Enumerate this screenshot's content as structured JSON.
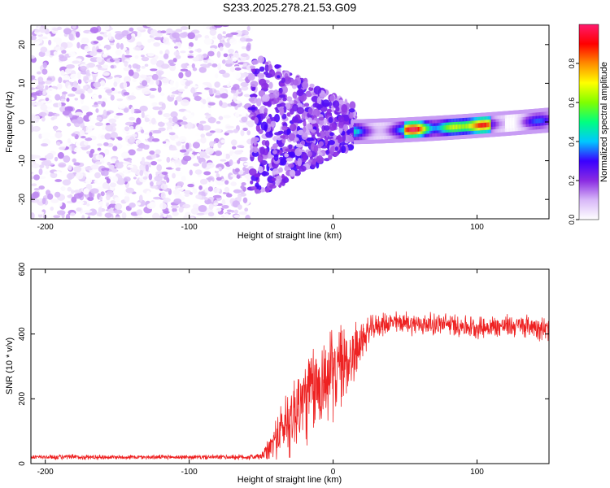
{
  "figure": {
    "title": "S233.2025.278.21.53.G09"
  },
  "chart_data": [
    {
      "type": "heatmap",
      "title": "S233.2025.278.21.53.G09",
      "xlabel": "Height of straight line (km)",
      "ylabel": "Frequency (Hz)",
      "xlim": [
        -210,
        150
      ],
      "ylim": [
        -25,
        25
      ],
      "x_ticks": [
        -200,
        -100,
        0,
        100
      ],
      "y_ticks": [
        -20,
        -10,
        0,
        10,
        20
      ],
      "colorbar": {
        "label": "Normalized spectral amplitude",
        "range": [
          0,
          1
        ],
        "ticks": [
          0.0,
          0.2,
          0.4,
          0.6,
          0.8
        ],
        "colors": [
          "#ffffff",
          "#d8b8f8",
          "#8a2be2",
          "#3a00ff",
          "#00c8ff",
          "#00ff80",
          "#80ff00",
          "#ffff00",
          "#ff8c00",
          "#ff0000",
          "#ff1a6e"
        ]
      },
      "regions": [
        {
          "name": "noise",
          "x_range": [
            -210,
            -57
          ],
          "freq_range": [
            -25,
            25
          ],
          "amplitude_range": [
            0.0,
            0.15
          ]
        },
        {
          "name": "transition",
          "x_range": [
            -57,
            15
          ],
          "freq_range": [
            -12,
            10
          ],
          "amplitude_range": [
            0.1,
            0.3
          ]
        },
        {
          "name": "signal",
          "x_range": [
            15,
            150
          ],
          "freq_center": [
            -2.5,
            0.5
          ],
          "amplitude_range": [
            0.2,
            1.0
          ],
          "peak_amplitude_near_x": [
            50,
            110
          ]
        }
      ]
    },
    {
      "type": "line",
      "xlabel": "Height of straight line (km)",
      "ylabel": "SNR (10 * v/v)",
      "xlim": [
        -210,
        150
      ],
      "ylim": [
        0,
        600
      ],
      "x_ticks": [
        -200,
        -100,
        0,
        100
      ],
      "y_ticks": [
        0,
        200,
        400,
        600
      ],
      "series": [
        {
          "name": "SNR",
          "color": "#ee2222",
          "x": [
            -210,
            -180,
            -150,
            -120,
            -90,
            -60,
            -50,
            -45,
            -40,
            -35,
            -30,
            -25,
            -20,
            -15,
            -10,
            -5,
            0,
            5,
            10,
            15,
            20,
            25,
            30,
            40,
            50,
            60,
            80,
            100,
            120,
            140,
            150
          ],
          "mean": [
            20,
            20,
            20,
            20,
            20,
            20,
            22,
            40,
            80,
            110,
            140,
            170,
            200,
            220,
            240,
            260,
            280,
            300,
            320,
            340,
            380,
            410,
            425,
            435,
            435,
            430,
            430,
            420,
            425,
            425,
            410
          ],
          "spread": [
            8,
            10,
            8,
            8,
            8,
            10,
            12,
            40,
            70,
            110,
            140,
            160,
            170,
            170,
            170,
            170,
            160,
            150,
            140,
            110,
            70,
            50,
            40,
            40,
            40,
            40,
            40,
            40,
            40,
            40,
            50
          ]
        }
      ]
    }
  ]
}
